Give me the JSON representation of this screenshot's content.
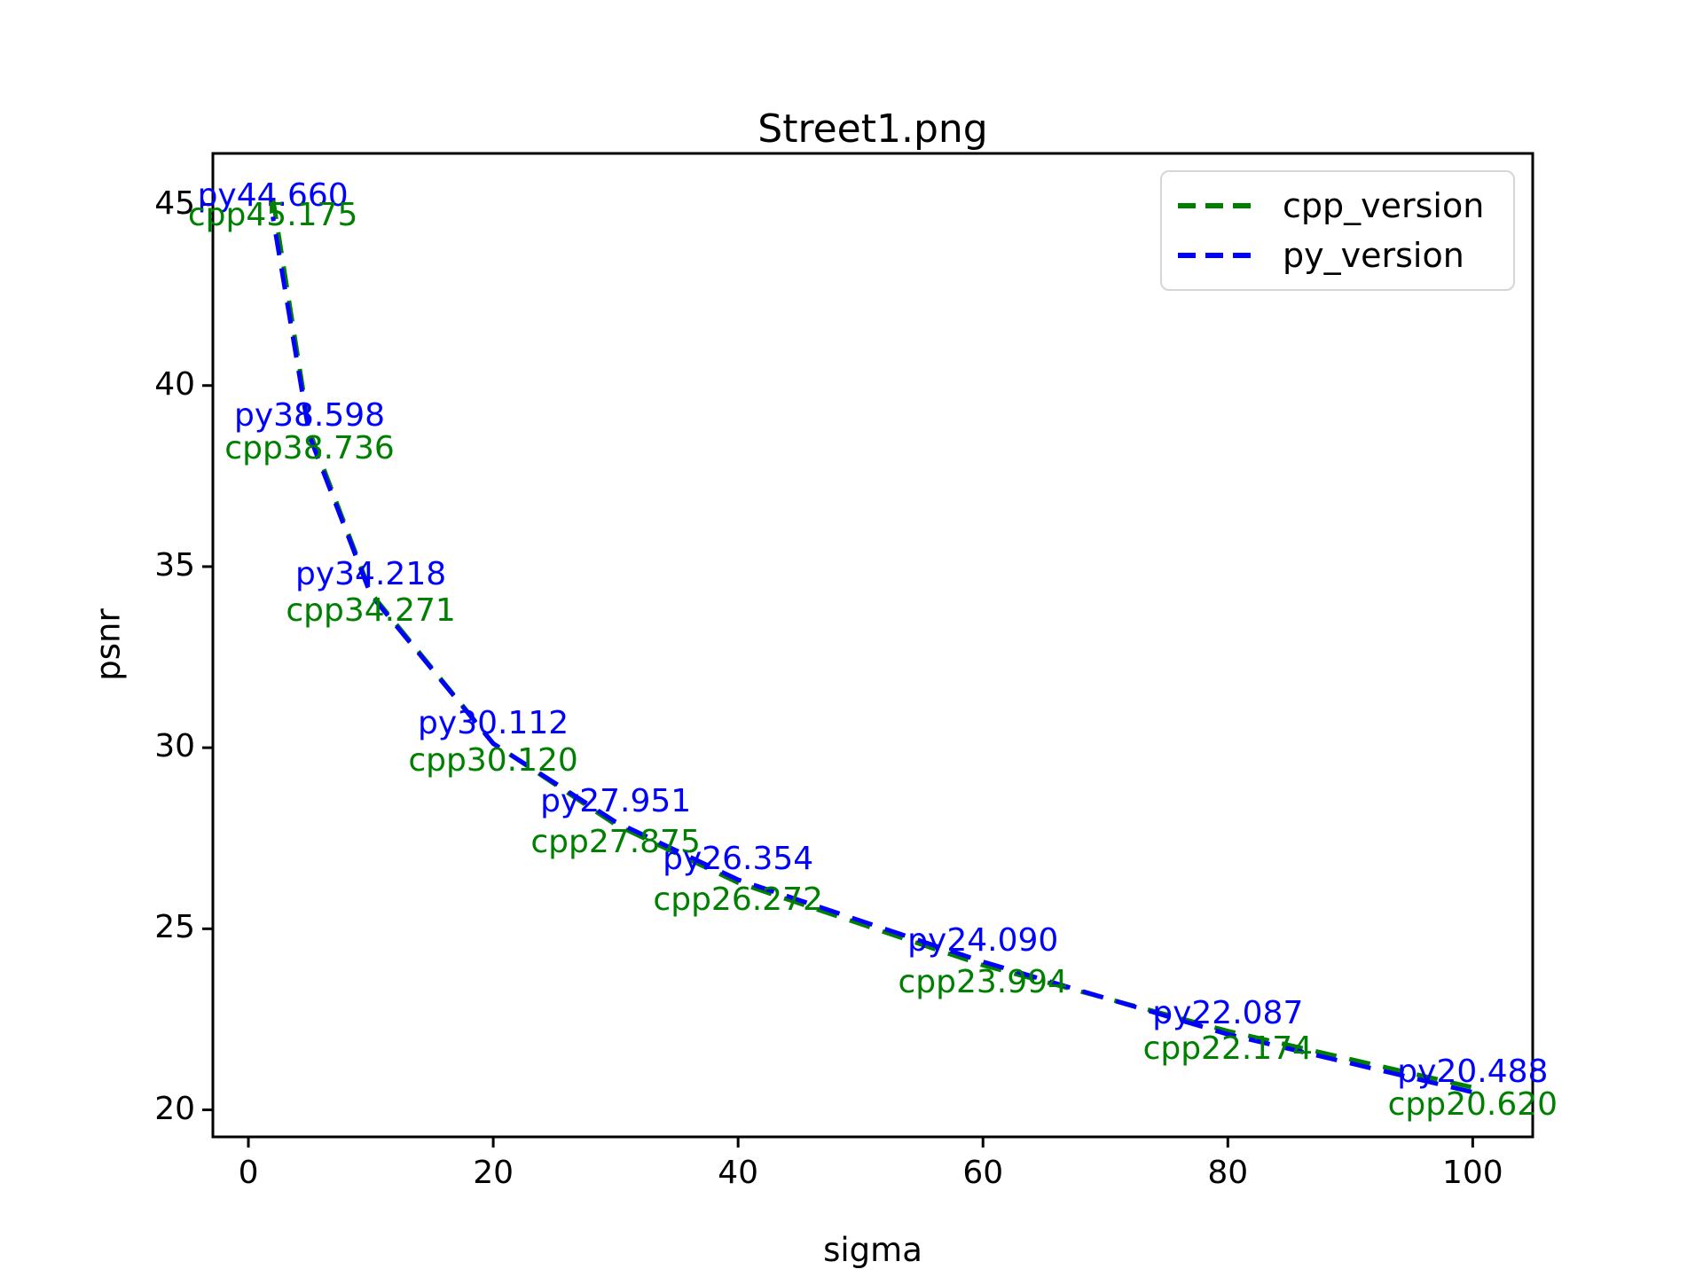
{
  "title": "Street1.png",
  "axes": {
    "xlabel": "sigma",
    "ylabel": "psnr"
  },
  "legend": {
    "position": "upper right",
    "items": [
      {
        "label": "cpp_version",
        "color": "#008000"
      },
      {
        "label": "py_version",
        "color": "#0000ff"
      }
    ]
  },
  "chart_data": {
    "type": "line",
    "title": "Street1.png",
    "xlabel": "sigma",
    "ylabel": "psnr",
    "x": [
      2,
      5,
      10,
      20,
      30,
      40,
      60,
      80,
      100
    ],
    "series": [
      {
        "name": "cpp_version",
        "color": "#008000",
        "linestyle": "dashed",
        "values": [
          45.175,
          38.736,
          34.271,
          30.12,
          27.875,
          26.272,
          23.994,
          22.174,
          20.62
        ],
        "point_labels": [
          "cpp45.175",
          "cpp38.736",
          "cpp34.271",
          "cpp30.120",
          "cpp27.875",
          "cpp26.272",
          "cpp23.994",
          "cpp22.174",
          "cpp20.620"
        ],
        "label_side": "below"
      },
      {
        "name": "py_version",
        "color": "#0000ff",
        "linestyle": "dashed",
        "values": [
          44.66,
          38.598,
          34.218,
          30.112,
          27.951,
          26.354,
          24.09,
          22.087,
          20.488
        ],
        "point_labels": [
          "py44.660",
          "py38.598",
          "py34.218",
          "py30.112",
          "py27.951",
          "py26.354",
          "py24.090",
          "py22.087",
          "py20.488"
        ],
        "label_side": "above"
      }
    ],
    "xticks": [
      0,
      20,
      40,
      60,
      80,
      100
    ],
    "yticks": [
      20,
      25,
      30,
      35,
      40,
      45
    ],
    "xlim": [
      -2.9,
      104.9
    ],
    "ylim": [
      19.2536,
      46.4094
    ],
    "grid": false,
    "legend_position": "upper right"
  }
}
